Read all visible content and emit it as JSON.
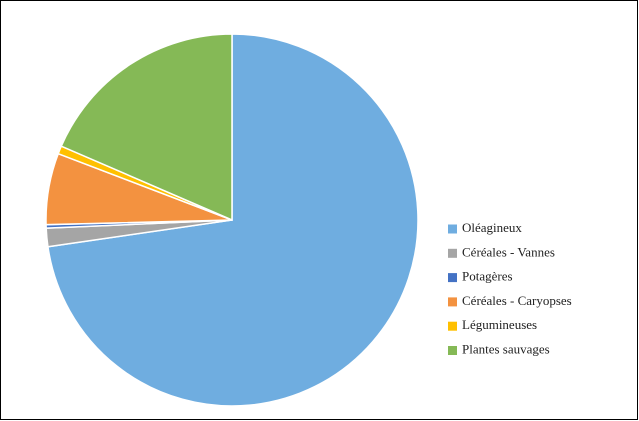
{
  "chart_data": {
    "type": "pie",
    "categories": [
      "Oléagineux",
      "Céréales - Vannes",
      "Potagères",
      "Céréales - Caryopses",
      "Légumineuses",
      "Plantes sauvages"
    ],
    "values": [
      72.7,
      1.6,
      0.3,
      6.2,
      0.7,
      18.5
    ],
    "colors": [
      "#6fade0",
      "#a5a5a5",
      "#4472c4",
      "#f39240",
      "#ffc000",
      "#85b956"
    ],
    "legend": "right"
  }
}
